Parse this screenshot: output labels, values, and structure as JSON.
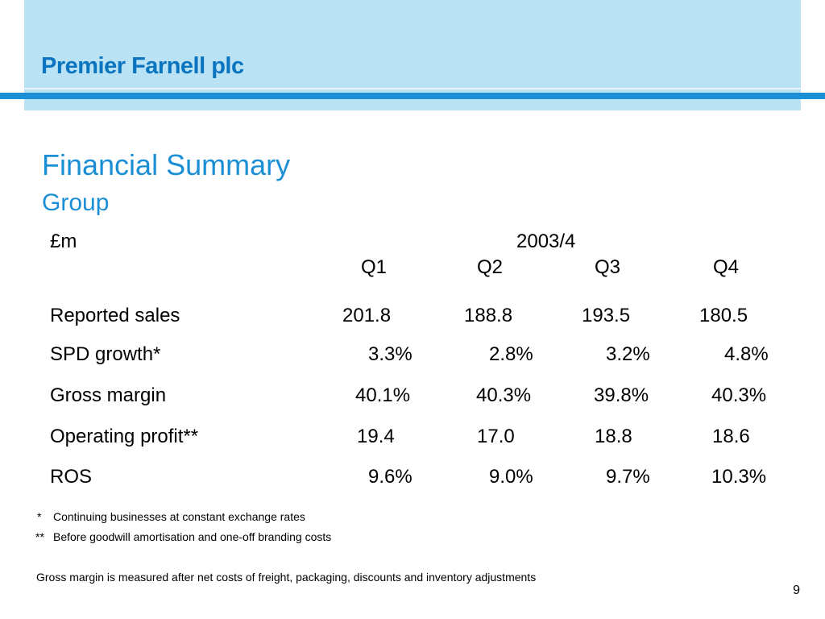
{
  "brand": "Premier Farnell plc",
  "title": "Financial Summary",
  "subtitle": "Group",
  "table": {
    "unit": "£m",
    "period": "2003/4",
    "quarters": [
      "Q1",
      "Q2",
      "Q3",
      "Q4"
    ],
    "rows": [
      {
        "label": "Reported sales",
        "values": [
          "201.8",
          "188.8",
          "193.5",
          "180.5"
        ]
      },
      {
        "label": "SPD growth*",
        "values": [
          "3.3%",
          "2.8%",
          "3.2%",
          "4.8%"
        ]
      },
      {
        "label": "Gross margin",
        "values": [
          "40.1%",
          "40.3%",
          "39.8%",
          "40.3%"
        ]
      },
      {
        "label": "Operating profit**",
        "values": [
          "19.4",
          "17.0",
          "18.8",
          "18.6"
        ]
      },
      {
        "label": "ROS",
        "values": [
          "9.6%",
          "9.0%",
          "9.7%",
          "10.3%"
        ]
      }
    ]
  },
  "footnotes": {
    "note1_marker": "*",
    "note1_text": "Continuing businesses at constant exchange rates",
    "note2_marker": "**",
    "note2_text": "Before goodwill amortisation and one-off branding costs",
    "note3_text": "Gross margin is measured after net costs of freight, packaging, discounts and inventory adjustments"
  },
  "page_number": "9"
}
